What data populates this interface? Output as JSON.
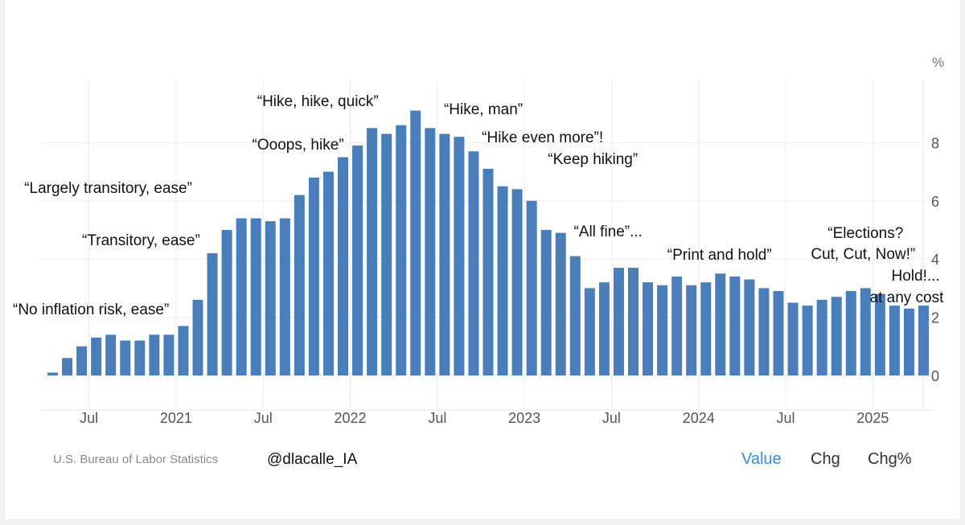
{
  "chart_data": {
    "type": "bar",
    "ylabel": "%",
    "ylim": [
      -1,
      9.9
    ],
    "yticks": [
      0,
      2,
      4,
      6,
      8
    ],
    "xticks": [
      "Jul",
      "2021",
      "Jul",
      "2022",
      "Jul",
      "2023",
      "Jul",
      "2024",
      "Jul",
      "2025"
    ],
    "xtick_indices": [
      2.5,
      8.5,
      14.5,
      20.5,
      26.5,
      32.5,
      38.5,
      44.5,
      50.5,
      56.5
    ],
    "values": [
      0.1,
      0.6,
      1.0,
      1.3,
      1.4,
      1.2,
      1.2,
      1.4,
      1.4,
      1.7,
      2.6,
      4.2,
      5.0,
      5.4,
      5.4,
      5.3,
      5.4,
      6.2,
      6.8,
      7.0,
      7.5,
      7.9,
      8.5,
      8.3,
      8.6,
      9.1,
      8.5,
      8.3,
      8.2,
      7.7,
      7.1,
      6.5,
      6.4,
      6.0,
      5.0,
      4.9,
      4.1,
      3.0,
      3.2,
      3.7,
      3.7,
      3.2,
      3.1,
      3.4,
      3.1,
      3.2,
      3.5,
      3.4,
      3.3,
      3.0,
      2.9,
      2.5,
      2.4,
      2.6,
      2.7,
      2.9,
      3.0,
      2.8,
      2.4,
      2.3,
      2.4
    ],
    "bar_color": "#4a7ebb",
    "grid": true,
    "annotations": [
      {
        "text": "“No inflation risk, ease”",
        "bar": 10
      },
      {
        "text": "“Transitory, ease”",
        "bar": 11
      },
      {
        "text": "“Largely transitory, ease”",
        "bar": 14
      },
      {
        "text": "“Ooops, hike”",
        "bar": 21
      },
      {
        "text": "“Hike, hike, quick”",
        "bar": 25
      },
      {
        "text": "“Hike, man”",
        "bar": 29
      },
      {
        "text": "“Hike even more”!",
        "bar": 33
      },
      {
        "text": "“Keep hiking”",
        "bar": 35
      },
      {
        "text": "“All fine”...",
        "bar": 39
      },
      {
        "text": "“Print and hold”",
        "bar": 46
      },
      {
        "text": "“Elections?",
        "bar": 56
      },
      {
        "text": "Cut, Cut, Now!”",
        "bar": 57
      },
      {
        "text": "Hold!...",
        "bar": 60
      },
      {
        "text": "at any cost",
        "bar": 60
      }
    ]
  },
  "footer": {
    "source": "U.S. Bureau of Labor Statistics",
    "handle": "@dlacalle_IA"
  },
  "controls": {
    "value": "Value",
    "chg": "Chg",
    "chg_pct": "Chg%"
  }
}
